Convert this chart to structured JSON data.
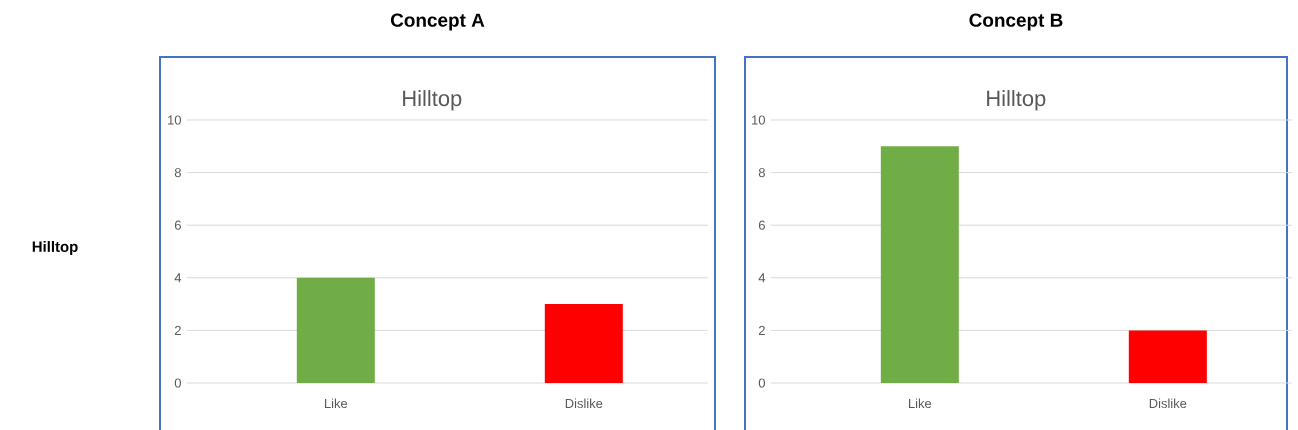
{
  "chart_data": [
    {
      "type": "bar",
      "title": "Concept A",
      "subtitle": "Hilltop",
      "annotations": [
        "Hilltop"
      ],
      "categories": [
        "Like",
        "Dislike"
      ],
      "values": [
        4,
        3
      ],
      "colors": [
        "#70ad47",
        "#ff0000"
      ],
      "ylim": [
        0,
        10
      ],
      "yticks": [
        0,
        2,
        4,
        6,
        8,
        10
      ],
      "grid": "y"
    },
    {
      "type": "bar",
      "title": "Concept B",
      "subtitle": "Hilltop",
      "categories": [
        "Like",
        "Dislike"
      ],
      "values": [
        9,
        2
      ],
      "colors": [
        "#70ad47",
        "#ff0000"
      ],
      "ylim": [
        0,
        10
      ],
      "yticks": [
        0,
        2,
        4,
        6,
        8,
        10
      ],
      "grid": "y"
    }
  ]
}
